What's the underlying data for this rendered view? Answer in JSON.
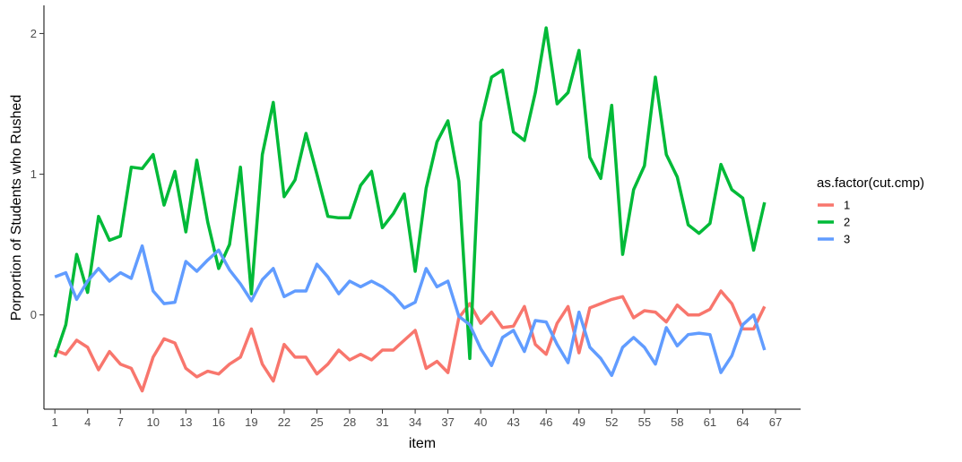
{
  "chart_data": {
    "type": "line",
    "xlabel": "item",
    "ylabel": "Porportion of Students who Rushed",
    "x_ticks": [
      1,
      4,
      7,
      10,
      13,
      16,
      19,
      22,
      25,
      28,
      31,
      34,
      37,
      40,
      43,
      46,
      49,
      52,
      55,
      58,
      61,
      64,
      67
    ],
    "y_ticks": [
      0,
      1,
      2
    ],
    "xlim": [
      0,
      69.3
    ],
    "ylim": [
      -0.67,
      2.2
    ],
    "grid": false,
    "legend": {
      "title": "as.factor(cut.cmp)",
      "position": "right"
    },
    "series": [
      {
        "name": "1",
        "color": "#F8766D",
        "x": [
          1,
          2,
          3,
          4,
          5,
          6,
          7,
          8,
          9,
          10,
          11,
          12,
          13,
          14,
          15,
          16,
          17,
          18,
          19,
          20,
          21,
          22,
          23,
          24,
          25,
          26,
          27,
          28,
          29,
          30,
          31,
          32,
          33,
          34,
          35,
          36,
          37,
          38,
          39,
          40,
          41,
          42,
          43,
          44,
          45,
          46,
          47,
          48,
          49,
          50,
          51,
          52,
          53,
          54,
          55,
          56,
          57,
          58,
          59,
          60,
          61,
          62,
          63,
          64,
          65,
          66
        ],
        "values": [
          -0.25,
          -0.28,
          -0.18,
          -0.23,
          -0.39,
          -0.26,
          -0.35,
          -0.38,
          -0.54,
          -0.3,
          -0.17,
          -0.2,
          -0.38,
          -0.44,
          -0.4,
          -0.42,
          -0.35,
          -0.3,
          -0.1,
          -0.35,
          -0.47,
          -0.21,
          -0.3,
          -0.3,
          -0.42,
          -0.35,
          -0.25,
          -0.32,
          -0.28,
          -0.32,
          -0.25,
          -0.25,
          -0.18,
          -0.11,
          -0.38,
          -0.33,
          -0.41,
          -0.02,
          0.08,
          -0.06,
          0.02,
          -0.09,
          -0.08,
          0.06,
          -0.21,
          -0.28,
          -0.06,
          0.06,
          -0.27,
          0.05,
          0.08,
          0.11,
          0.13,
          -0.02,
          0.03,
          0.02,
          -0.05,
          0.07,
          0.0,
          0.0,
          0.04,
          0.17,
          0.08,
          -0.1,
          -0.1,
          0.06
        ]
      },
      {
        "name": "2",
        "color": "#00BA38",
        "x": [
          1,
          2,
          3,
          4,
          5,
          6,
          7,
          8,
          9,
          10,
          11,
          12,
          13,
          14,
          15,
          16,
          17,
          18,
          19,
          20,
          21,
          22,
          23,
          24,
          25,
          26,
          27,
          28,
          29,
          30,
          31,
          32,
          33,
          34,
          35,
          36,
          37,
          38,
          39,
          40,
          41,
          42,
          43,
          44,
          45,
          46,
          47,
          48,
          49,
          50,
          51,
          52,
          53,
          54,
          55,
          56,
          57,
          58,
          59,
          60,
          61,
          62,
          63,
          64,
          65,
          66
        ],
        "values": [
          -0.3,
          -0.07,
          0.43,
          0.16,
          0.7,
          0.53,
          0.56,
          1.05,
          1.04,
          1.14,
          0.78,
          1.02,
          0.59,
          1.1,
          0.66,
          0.33,
          0.5,
          1.05,
          0.15,
          1.14,
          1.51,
          0.84,
          0.96,
          1.29,
          1.0,
          0.7,
          0.69,
          0.69,
          0.92,
          1.02,
          0.62,
          0.72,
          0.86,
          0.31,
          0.9,
          1.23,
          1.38,
          0.95,
          -0.31,
          1.37,
          1.69,
          1.74,
          1.3,
          1.24,
          1.58,
          2.04,
          1.5,
          1.58,
          1.88,
          1.12,
          0.97,
          1.49,
          0.43,
          0.89,
          1.06,
          1.69,
          1.14,
          0.98,
          0.64,
          0.58,
          0.65,
          1.07,
          0.89,
          0.83,
          0.46,
          0.8
        ]
      },
      {
        "name": "3",
        "color": "#619CFF",
        "x": [
          1,
          2,
          3,
          4,
          5,
          6,
          7,
          8,
          9,
          10,
          11,
          12,
          13,
          14,
          15,
          16,
          17,
          18,
          19,
          20,
          21,
          22,
          23,
          24,
          25,
          26,
          27,
          28,
          29,
          30,
          31,
          32,
          33,
          34,
          35,
          36,
          37,
          38,
          39,
          40,
          41,
          42,
          43,
          44,
          45,
          46,
          47,
          48,
          49,
          50,
          51,
          52,
          53,
          54,
          55,
          56,
          57,
          58,
          59,
          60,
          61,
          62,
          63,
          64,
          65,
          66
        ],
        "values": [
          0.27,
          0.3,
          0.11,
          0.24,
          0.33,
          0.24,
          0.3,
          0.26,
          0.49,
          0.17,
          0.08,
          0.09,
          0.38,
          0.31,
          0.39,
          0.46,
          0.32,
          0.22,
          0.1,
          0.25,
          0.33,
          0.13,
          0.17,
          0.17,
          0.36,
          0.27,
          0.15,
          0.24,
          0.2,
          0.24,
          0.2,
          0.14,
          0.05,
          0.09,
          0.33,
          0.2,
          0.24,
          -0.01,
          -0.07,
          -0.24,
          -0.36,
          -0.16,
          -0.11,
          -0.26,
          -0.04,
          -0.05,
          -0.21,
          -0.34,
          0.02,
          -0.23,
          -0.31,
          -0.43,
          -0.23,
          -0.16,
          -0.23,
          -0.35,
          -0.09,
          -0.22,
          -0.14,
          -0.13,
          -0.14,
          -0.41,
          -0.29,
          -0.07,
          0.0,
          -0.25
        ]
      }
    ]
  }
}
